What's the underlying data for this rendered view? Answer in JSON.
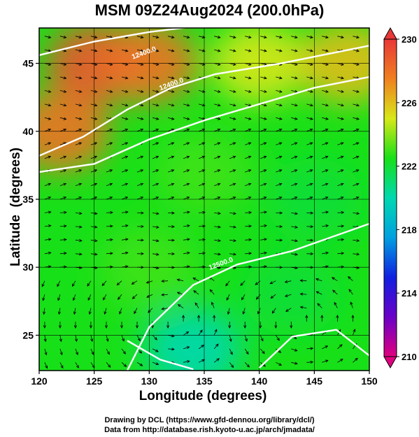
{
  "page": {
    "title": "MSM 09Z24Aug2024 (200.0hPa)",
    "credit_line1": "Drawing by DCL (https://www.gfd-dennou.org/library/dcl/)",
    "credit_line2": "Data from http://database.rish.kyoto-u.ac.jp/arch/jmadata/"
  },
  "chart_data": {
    "type": "heatmap",
    "title": "MSM 09Z24Aug2024 (200.0hPa)",
    "xlabel": "Longitude (degrees)",
    "ylabel": "Latitude  (degrees)",
    "xlim": [
      120,
      150
    ],
    "ylim": [
      22.4,
      47.6
    ],
    "x_ticks": [
      120,
      125,
      130,
      135,
      140,
      145,
      150
    ],
    "y_ticks": [
      25,
      30,
      35,
      40,
      45
    ],
    "grid": true,
    "overlay": "streamlines",
    "colorbar": {
      "min": 210,
      "max": 230,
      "tick_labels": [
        "230",
        "226",
        "222",
        "218",
        "214",
        "210"
      ],
      "tick_values": [
        230,
        226,
        222,
        218,
        214,
        210
      ],
      "colors": [
        "#e0007f",
        "#6a00c8",
        "#1020e0",
        "#00a0e0",
        "#00d8b0",
        "#18e018",
        "#d8e818",
        "#f08020",
        "#e83838"
      ]
    },
    "field_samples": [
      {
        "lon": 125,
        "lat": 45,
        "value": 229
      },
      {
        "lon": 130,
        "lat": 45,
        "value": 228
      },
      {
        "lon": 122,
        "lat": 40,
        "value": 228
      },
      {
        "lon": 140,
        "lat": 45,
        "value": 225
      },
      {
        "lon": 148,
        "lat": 45,
        "value": 226
      },
      {
        "lon": 135,
        "lat": 37,
        "value": 223
      },
      {
        "lon": 145,
        "lat": 35,
        "value": 222
      },
      {
        "lon": 130,
        "lat": 30,
        "value": 223
      },
      {
        "lon": 143,
        "lat": 28,
        "value": 222
      },
      {
        "lon": 134,
        "lat": 24,
        "value": 220
      }
    ],
    "contour_labels": [
      {
        "text": "12400.0",
        "lon": 128.5,
        "lat": 45.3
      },
      {
        "text": "12400.0",
        "lon": 131.0,
        "lat": 43.0
      },
      {
        "text": "12500.0",
        "lon": 135.5,
        "lat": 29.8
      }
    ]
  }
}
